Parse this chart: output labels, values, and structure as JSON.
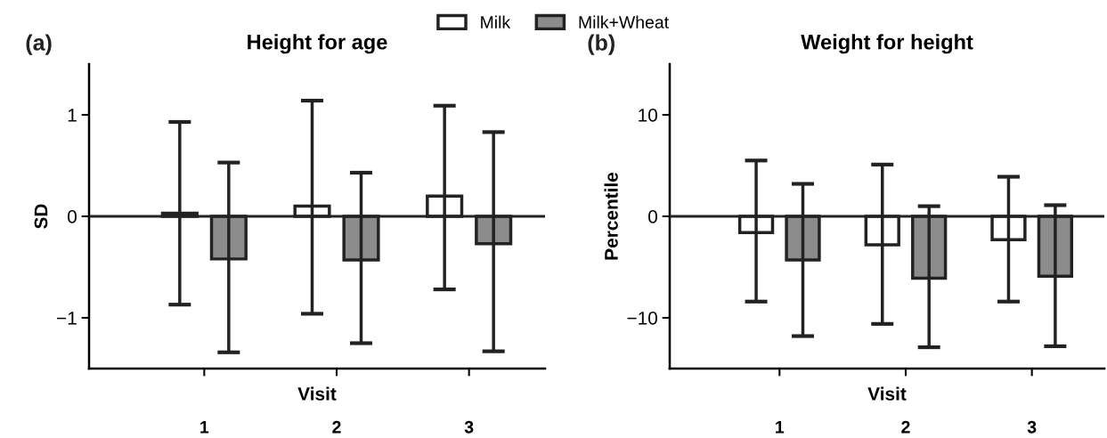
{
  "chart_data": [
    {
      "type": "bar",
      "title": "Height for age",
      "xlabel": "Visit",
      "ylabel": "SD",
      "categories": [
        "1",
        "2",
        "3"
      ],
      "series": [
        {
          "name": "Milk",
          "color": "#ffffff",
          "values": [
            0.03,
            0.1,
            0.2
          ],
          "errors": [
            [
              -0.87,
              0.93
            ],
            [
              -0.96,
              1.14
            ],
            [
              -0.72,
              1.09
            ]
          ]
        },
        {
          "name": "Milk+Wheat",
          "color": "#8c8c8c",
          "values": [
            -0.42,
            -0.43,
            -0.27
          ],
          "errors": [
            [
              -1.34,
              0.53
            ],
            [
              -1.25,
              0.43
            ],
            [
              -1.33,
              0.83
            ]
          ]
        }
      ],
      "ylim": [
        -1.5,
        1.5
      ],
      "yticks": [
        {
          "value": -1,
          "label": "−1"
        },
        0,
        1
      ],
      "ref_lines": [
        {
          "axis": "y",
          "value": 0,
          "label": null
        }
      ],
      "annotations": [
        "(a)"
      ],
      "legend": "top",
      "grid": false
    },
    {
      "type": "bar",
      "title": "Weight for height",
      "xlabel": "Visit",
      "ylabel": "Percentile",
      "categories": [
        "1",
        "2",
        "3"
      ],
      "series": [
        {
          "name": "Milk",
          "color": "#ffffff",
          "values": [
            -1.6,
            -2.8,
            -2.3
          ],
          "errors": [
            [
              -8.4,
              5.5
            ],
            [
              -10.6,
              5.1
            ],
            [
              -8.4,
              3.9
            ]
          ]
        },
        {
          "name": "Milk+Wheat",
          "color": "#8c8c8c",
          "values": [
            -4.3,
            -6.1,
            -5.9
          ],
          "errors": [
            [
              -11.8,
              3.2
            ],
            [
              -12.9,
              1.0
            ],
            [
              -12.8,
              1.1
            ]
          ]
        }
      ],
      "ylim": [
        -15,
        15
      ],
      "yticks": [
        {
          "value": -10,
          "label": "−10"
        },
        0,
        10
      ],
      "ref_lines": [
        {
          "axis": "y",
          "value": 0,
          "label": null
        }
      ],
      "annotations": [
        "(b)"
      ],
      "grid": false
    }
  ]
}
